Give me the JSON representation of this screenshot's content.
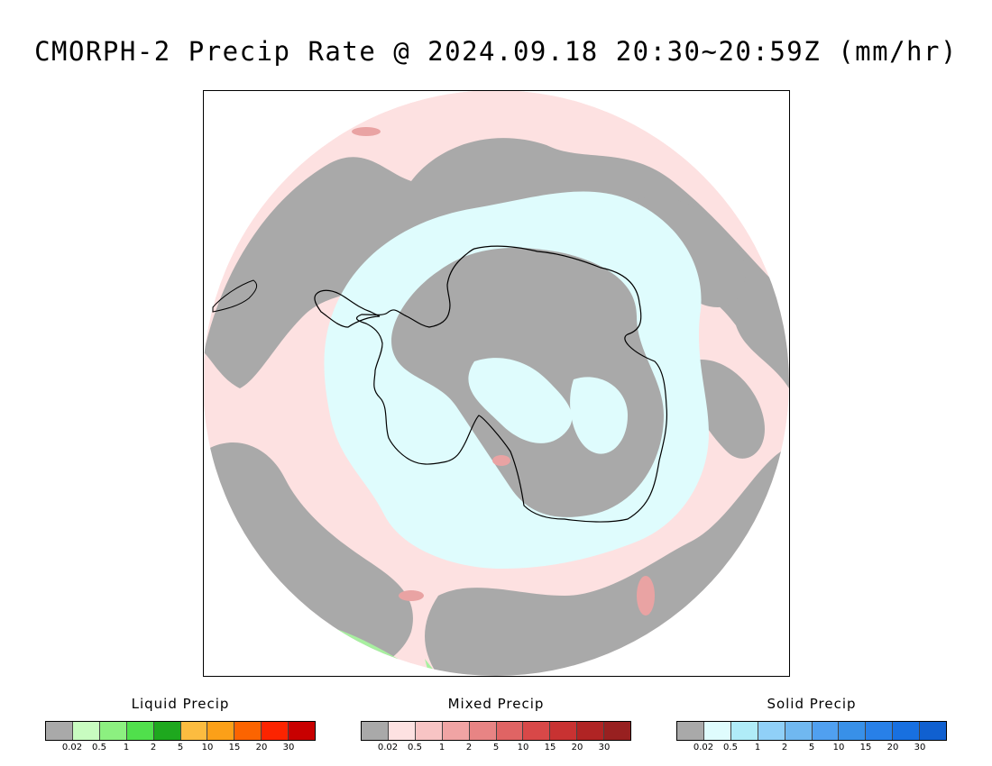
{
  "title": "CMORPH-2 Precip Rate @ 2024.09.18 20:30~20:59Z (mm/hr)",
  "map": {
    "projection": "south polar stereographic",
    "region": "Antarctica / Southern Ocean",
    "colors": {
      "no_precip": "#a9a9a9",
      "mixed_light": "#fde1e1",
      "solid_light": "#dffcfd",
      "mixed_moderate": "#e9a3a3",
      "liquid_light": "#a8f0a0",
      "coastline": "#000000"
    }
  },
  "legends": [
    {
      "title": "Liquid Precip",
      "ticks": [
        "0.02",
        "0.5",
        "1",
        "2",
        "5",
        "10",
        "15",
        "20",
        "30"
      ],
      "colors": [
        "#a9a9a9",
        "#c8fcc0",
        "#8cf080",
        "#50e04c",
        "#1ea81e",
        "#fcbc40",
        "#fca018",
        "#fc6400",
        "#fc2400",
        "#c80000"
      ]
    },
    {
      "title": "Mixed Precip",
      "ticks": [
        "0.02",
        "0.5",
        "1",
        "2",
        "5",
        "10",
        "15",
        "20",
        "30"
      ],
      "colors": [
        "#a9a9a9",
        "#fde1e1",
        "#f8c4c4",
        "#f0a4a4",
        "#e88484",
        "#e06464",
        "#d84848",
        "#c83232",
        "#b02424",
        "#982020"
      ]
    },
    {
      "title": "Solid Precip",
      "ticks": [
        "0.02",
        "0.5",
        "1",
        "2",
        "5",
        "10",
        "15",
        "20",
        "30"
      ],
      "colors": [
        "#a9a9a9",
        "#dffcfd",
        "#b0ecf8",
        "#90d0f8",
        "#70b8f0",
        "#50a0f0",
        "#3890e8",
        "#2880e8",
        "#1870e0",
        "#1060d0"
      ]
    }
  ]
}
